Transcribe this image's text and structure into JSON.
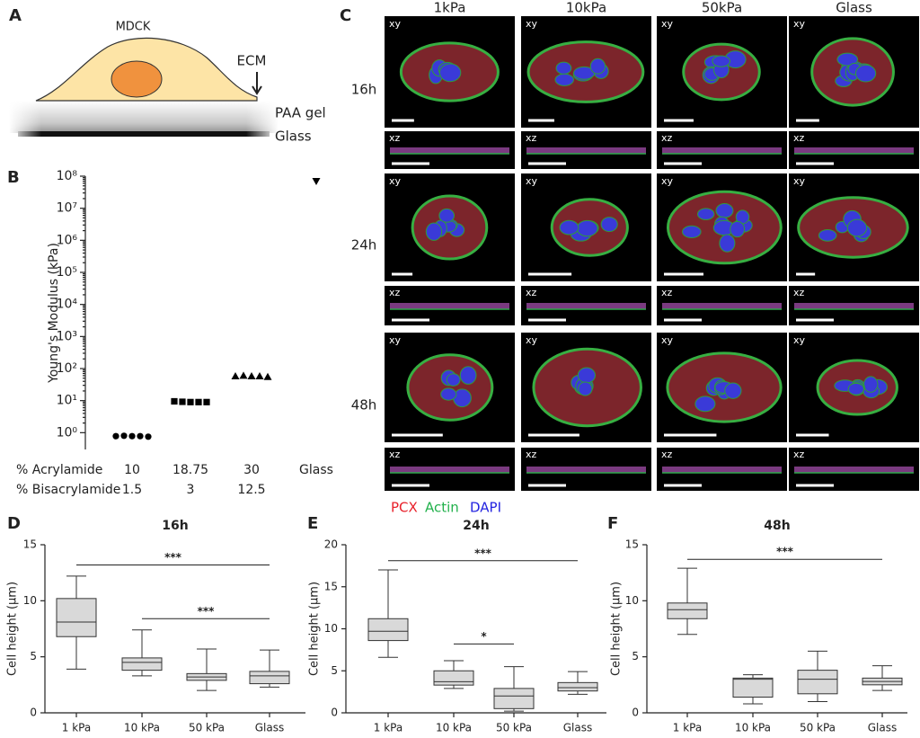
{
  "panel_a": {
    "label": "A",
    "cell": "MDCK",
    "ecm": "ECM",
    "gel": "PAA gel",
    "glass": "Glass"
  },
  "panel_c": {
    "label": "C",
    "columns": [
      "1kPa",
      "10kPa",
      "50kPa",
      "Glass"
    ],
    "rows": [
      "16h",
      "24h",
      "48h"
    ],
    "views": [
      "xy",
      "xz"
    ],
    "legend": [
      {
        "name": "PCX",
        "color": "#e8202a"
      },
      {
        "name": "Actin",
        "color": "#22b14c"
      },
      {
        "name": "DAPI",
        "color": "#2424e0"
      }
    ]
  },
  "chart_data": [
    {
      "panel_label": "B",
      "type": "scatter",
      "y_label": "Young's Modulus (kPa)",
      "row_labels": [
        "% Acrylamide",
        "% Bisacrylamide"
      ],
      "categories": [
        "10",
        "18.75",
        "30",
        "Glass"
      ],
      "categories2": [
        "1.5",
        "3",
        "12.5",
        null
      ],
      "values": [
        [
          0.78,
          0.8,
          0.78,
          0.78,
          0.75
        ],
        [
          9.5,
          9.2,
          9.0,
          9.0,
          9.0
        ],
        [
          58,
          60,
          58,
          58,
          55
        ],
        [
          70000000
        ]
      ],
      "markers": [
        "circle",
        "square",
        "triangle",
        "triangle-down"
      ],
      "color": "#000000",
      "log_scale": true,
      "ylim": [
        0.3,
        100000000
      ],
      "yticks": [
        {
          "value": 1,
          "label": "10⁰"
        },
        {
          "value": 10,
          "label": "10¹"
        },
        {
          "value": 100,
          "label": "10²"
        },
        {
          "value": 1000,
          "label": "10³"
        },
        {
          "value": 10000,
          "label": "10⁴"
        },
        {
          "value": 100000,
          "label": "10⁵"
        },
        {
          "value": 1000000,
          "label": "10⁶"
        },
        {
          "value": 10000000,
          "label": "10⁷"
        },
        {
          "value": 100000000,
          "label": "10⁸"
        }
      ]
    },
    {
      "panel_label": "D",
      "type": "box",
      "title": "16h",
      "y_label": "Cell height (µm)",
      "categories": [
        "1 kPa",
        "10 kPa",
        "50 kPa",
        "Glass"
      ],
      "min": [
        3.9,
        3.3,
        2.0,
        2.3
      ],
      "q1": [
        6.8,
        3.8,
        2.9,
        2.6
      ],
      "median": [
        8.1,
        4.5,
        3.2,
        3.3
      ],
      "q3": [
        10.2,
        4.9,
        3.5,
        3.7
      ],
      "max": [
        12.2,
        7.4,
        5.7,
        5.6
      ],
      "color": "#d9d9d9",
      "ylim": [
        0,
        15
      ],
      "yticks": [
        0,
        5,
        10,
        15
      ],
      "annotations": [
        {
          "text": "***",
          "y": 13.2
        },
        {
          "text": "***",
          "y": 8.4
        }
      ]
    },
    {
      "panel_label": "E",
      "type": "box",
      "title": "24h",
      "y_label": "Cell height (µm)",
      "categories": [
        "1 kPa",
        "10 kPa",
        "50 kPa",
        "Glass"
      ],
      "min": [
        6.6,
        2.9,
        0.2,
        2.2
      ],
      "q1": [
        8.6,
        3.3,
        0.5,
        2.6
      ],
      "median": [
        9.7,
        3.7,
        2.0,
        3.0
      ],
      "q3": [
        11.2,
        5.0,
        2.9,
        3.6
      ],
      "max": [
        17.0,
        6.2,
        5.5,
        4.9
      ],
      "color": "#d9d9d9",
      "ylim": [
        0,
        20
      ],
      "yticks": [
        0,
        5,
        10,
        15,
        20
      ],
      "annotations": [
        {
          "text": "***",
          "y": 18.1
        },
        {
          "text": "*",
          "y": 8.2
        }
      ]
    },
    {
      "panel_label": "F",
      "type": "box",
      "title": "48h",
      "y_label": "Cell height (µm)",
      "categories": [
        "1 kPa",
        "10 kPa",
        "50 kPa",
        "Glass"
      ],
      "min": [
        7.0,
        0.8,
        1.0,
        2.0
      ],
      "q1": [
        8.4,
        1.4,
        1.7,
        2.5
      ],
      "median": [
        9.2,
        3.0,
        3.0,
        2.8
      ],
      "q3": [
        9.8,
        3.1,
        3.8,
        3.1
      ],
      "max": [
        12.9,
        3.4,
        5.5,
        4.2
      ],
      "color": "#d9d9d9",
      "ylim": [
        0,
        15
      ],
      "yticks": [
        0,
        5,
        10,
        15
      ],
      "annotations": [
        {
          "text": "***",
          "y": 13.7
        }
      ]
    }
  ]
}
